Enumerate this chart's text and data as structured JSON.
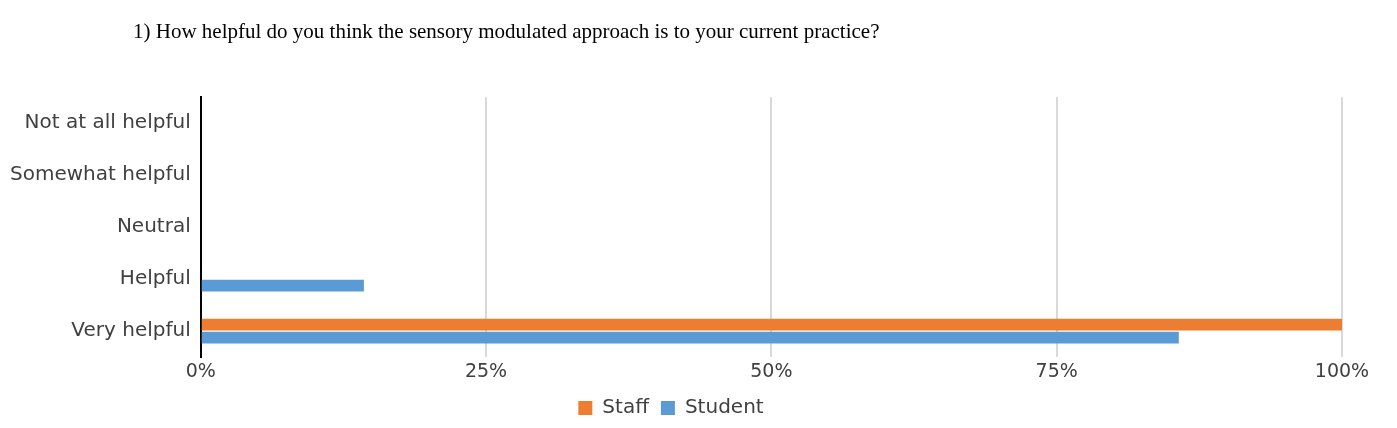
{
  "chart_data": {
    "type": "bar",
    "orientation": "horizontal",
    "title": "1) How helpful do you think the sensory modulated approach is to your current practice?",
    "categories": [
      "Not at all helpful",
      "Somewhat helpful",
      "Neutral",
      "Helpful",
      "Very helpful"
    ],
    "series": [
      {
        "name": "Staff",
        "color": "#ed7d31",
        "values": [
          0,
          0,
          0,
          0,
          100
        ]
      },
      {
        "name": "Student",
        "color": "#5b9bd5",
        "values": [
          0,
          0,
          0,
          14.3,
          85.7
        ]
      }
    ],
    "xlim": [
      0,
      100
    ],
    "xticks": [
      {
        "value": 0,
        "label": "0%"
      },
      {
        "value": 25,
        "label": "25%"
      },
      {
        "value": 50,
        "label": "50%"
      },
      {
        "value": 75,
        "label": "75%"
      },
      {
        "value": 100,
        "label": "100%"
      }
    ],
    "grid": "x",
    "legend": "bottom"
  }
}
